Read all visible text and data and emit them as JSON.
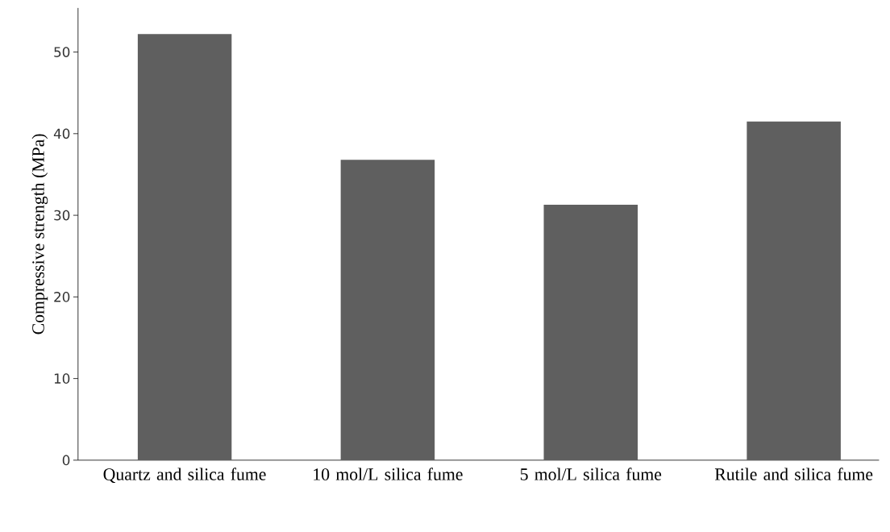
{
  "chart_data": {
    "type": "bar",
    "ylabel": "Compressive strength (MPa)",
    "categories": [
      "Quartz and silica fume",
      "10 mol/L silica fume",
      "5 mol/L silica fume",
      "Rutile and silica fume"
    ],
    "values": [
      52.2,
      36.8,
      31.3,
      41.5
    ],
    "color": "#5f5f5f",
    "ylim": [
      0,
      55.4
    ],
    "yticks": [
      0,
      10,
      20,
      30,
      40,
      50
    ],
    "grid": false
  }
}
